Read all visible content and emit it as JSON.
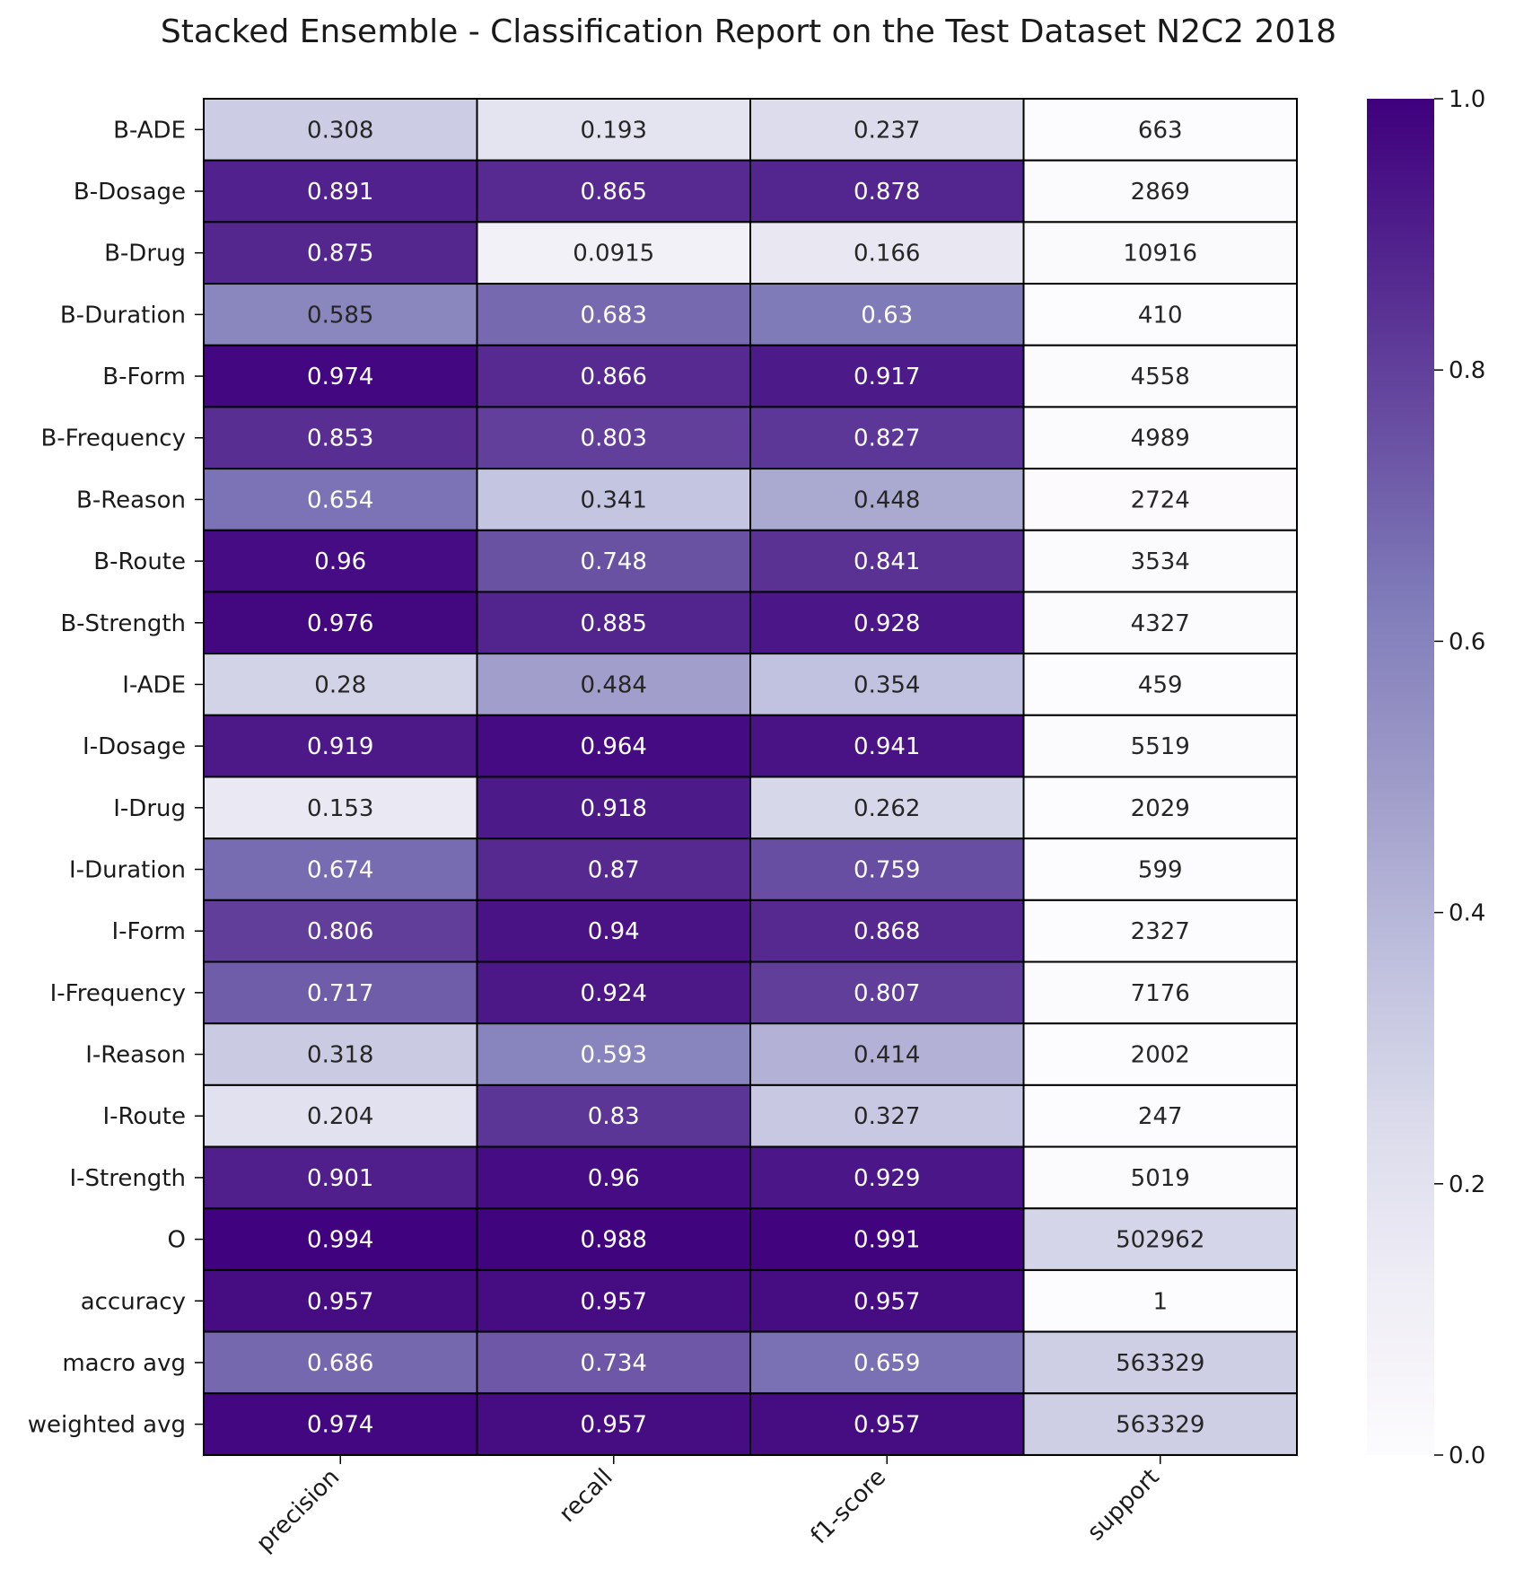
{
  "chart_data": {
    "type": "heatmap",
    "title": "Stacked Ensemble - Classification Report on the Test Dataset N2C2 2018",
    "colormap": "Purples",
    "color_range": [
      0,
      1
    ],
    "colorbar_ticks": [
      "0.0",
      "0.2",
      "0.4",
      "0.6",
      "0.8",
      "1.0"
    ],
    "columns": [
      "precision",
      "recall",
      "f1-score",
      "support"
    ],
    "rows": [
      "B-ADE",
      "B-Dosage",
      "B-Drug",
      "B-Duration",
      "B-Form",
      "B-Frequency",
      "B-Reason",
      "B-Route",
      "B-Strength",
      "I-ADE",
      "I-Dosage",
      "I-Drug",
      "I-Duration",
      "I-Form",
      "I-Frequency",
      "I-Reason",
      "I-Route",
      "I-Strength",
      "O",
      "accuracy",
      "macro avg",
      "weighted avg"
    ],
    "cells": [
      [
        "0.308",
        "0.193",
        "0.237",
        "663"
      ],
      [
        "0.891",
        "0.865",
        "0.878",
        "2869"
      ],
      [
        "0.875",
        "0.0915",
        "0.166",
        "10916"
      ],
      [
        "0.585",
        "0.683",
        "0.63",
        "410"
      ],
      [
        "0.974",
        "0.866",
        "0.917",
        "4558"
      ],
      [
        "0.853",
        "0.803",
        "0.827",
        "4989"
      ],
      [
        "0.654",
        "0.341",
        "0.448",
        "2724"
      ],
      [
        "0.96",
        "0.748",
        "0.841",
        "3534"
      ],
      [
        "0.976",
        "0.885",
        "0.928",
        "4327"
      ],
      [
        "0.28",
        "0.484",
        "0.354",
        "459"
      ],
      [
        "0.919",
        "0.964",
        "0.941",
        "5519"
      ],
      [
        "0.153",
        "0.918",
        "0.262",
        "2029"
      ],
      [
        "0.674",
        "0.87",
        "0.759",
        "599"
      ],
      [
        "0.806",
        "0.94",
        "0.868",
        "2327"
      ],
      [
        "0.717",
        "0.924",
        "0.807",
        "7176"
      ],
      [
        "0.318",
        "0.593",
        "0.414",
        "2002"
      ],
      [
        "0.204",
        "0.83",
        "0.327",
        "247"
      ],
      [
        "0.901",
        "0.96",
        "0.929",
        "5019"
      ],
      [
        "0.994",
        "0.988",
        "0.991",
        "502962"
      ],
      [
        "0.957",
        "0.957",
        "0.957",
        "1"
      ],
      [
        "0.686",
        "0.734",
        "0.659",
        "563329"
      ],
      [
        "0.974",
        "0.957",
        "0.957",
        "563329"
      ]
    ],
    "support_color_levels": [
      0.0012,
      0.0051,
      0.0194,
      0.0007,
      0.0081,
      0.0089,
      0.0048,
      0.0063,
      0.0077,
      0.0008,
      0.0098,
      0.0036,
      0.0011,
      0.0041,
      0.0127,
      0.0036,
      0.0004,
      0.0089,
      0.27,
      0.0,
      0.3,
      0.3
    ]
  }
}
